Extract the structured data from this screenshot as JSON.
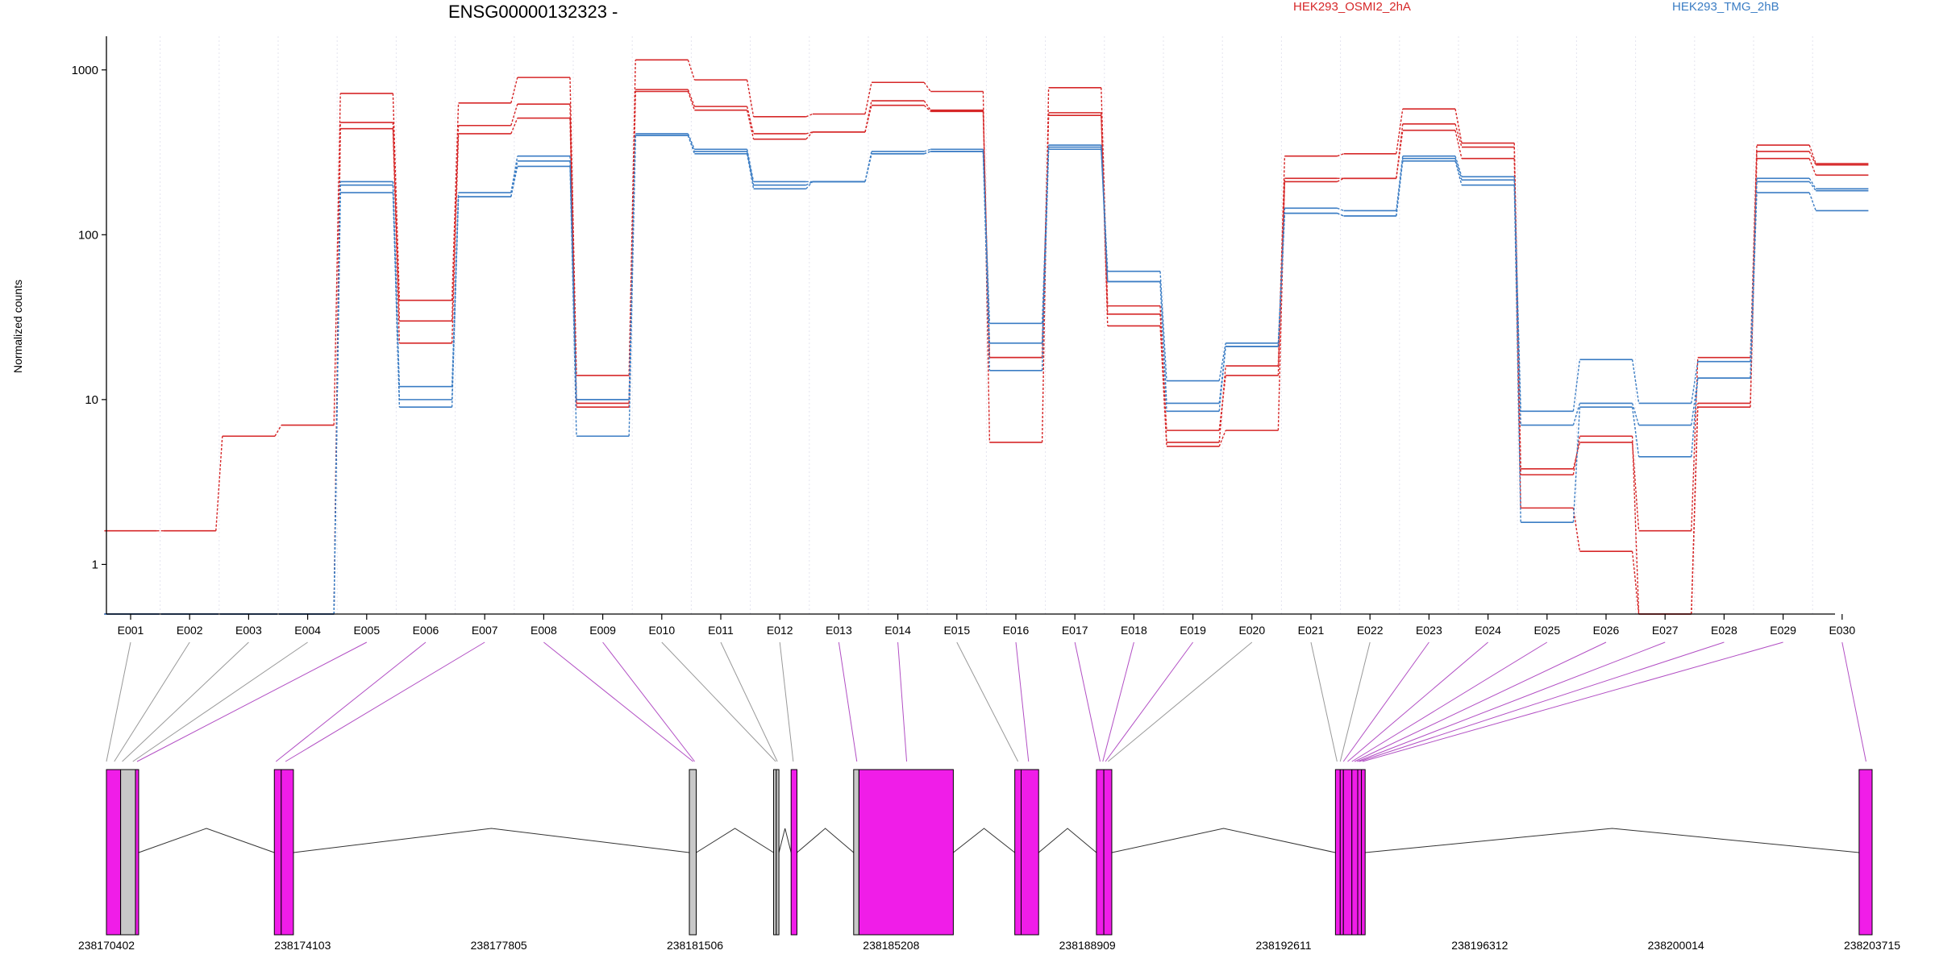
{
  "chart_data": {
    "type": "line",
    "title": "ENSG00000132323 -",
    "ylabel": "Normalized counts",
    "yscale": "log",
    "ylim": [
      0.5,
      1600
    ],
    "yticks": [
      1,
      10,
      100,
      1000
    ],
    "yticklabels": [
      "1",
      "10",
      "100",
      "1000"
    ],
    "exons": [
      "E001",
      "E002",
      "E003",
      "E004",
      "E005",
      "E006",
      "E007",
      "E008",
      "E009",
      "E010",
      "E011",
      "E012",
      "E013",
      "E014",
      "E015",
      "E016",
      "E017",
      "E018",
      "E019",
      "E020",
      "E021",
      "E022",
      "E023",
      "E024",
      "E025",
      "E026",
      "E027",
      "E028",
      "E029",
      "E030"
    ],
    "legend": [
      {
        "label": "HEK293_OSMI2_2hA",
        "color": "#d62728"
      },
      {
        "label": "HEK293_TMG_2hB",
        "color": "#3b7dc4"
      }
    ],
    "series": [
      {
        "group": "HEK293_OSMI2_2hA",
        "color": "#d62728",
        "values": [
          1.6,
          1.6,
          6,
          7,
          720,
          40,
          630,
          900,
          14,
          1150,
          870,
          520,
          540,
          840,
          740,
          5.5,
          780,
          37,
          5.5,
          16,
          300,
          310,
          580,
          360,
          3.8,
          5.5,
          1.6,
          18,
          350,
          270
        ]
      },
      {
        "group": "HEK293_OSMI2_2hA",
        "color": "#d62728",
        "values": [
          0.5,
          0.5,
          0.5,
          0.5,
          480,
          30,
          460,
          620,
          9.5,
          760,
          600,
          410,
          420,
          650,
          570,
          18,
          550,
          33,
          6.5,
          14,
          220,
          220,
          470,
          340,
          3.5,
          6,
          0.5,
          9.5,
          320,
          265
        ]
      },
      {
        "group": "HEK293_OSMI2_2hA",
        "color": "#d62728",
        "values": [
          0.5,
          0.5,
          0.5,
          0.5,
          440,
          22,
          410,
          510,
          9,
          740,
          570,
          380,
          420,
          610,
          560,
          18,
          530,
          28,
          5.2,
          6.5,
          210,
          220,
          430,
          290,
          2.2,
          1.2,
          0.5,
          9,
          290,
          230
        ]
      },
      {
        "group": "HEK293_TMG_2hB",
        "color": "#3b7dc4",
        "values": [
          0.5,
          0.5,
          0.5,
          0.5,
          210,
          12,
          180,
          300,
          10,
          410,
          330,
          210,
          210,
          320,
          330,
          29,
          350,
          60,
          13,
          22,
          145,
          140,
          300,
          225,
          8.5,
          17.5,
          9.5,
          17,
          220,
          190
        ]
      },
      {
        "group": "HEK293_TMG_2hB",
        "color": "#3b7dc4",
        "values": [
          0.5,
          0.5,
          0.5,
          0.5,
          200,
          10,
          170,
          280,
          10,
          400,
          320,
          200,
          210,
          310,
          320,
          22,
          340,
          52,
          9.5,
          21,
          135,
          130,
          290,
          215,
          7,
          9.5,
          7,
          13.5,
          210,
          185
        ]
      },
      {
        "group": "HEK293_TMG_2hB",
        "color": "#3b7dc4",
        "values": [
          0.5,
          0.5,
          0.5,
          0.5,
          180,
          9,
          170,
          260,
          6,
          400,
          310,
          190,
          210,
          310,
          320,
          15,
          330,
          52,
          8.5,
          21,
          135,
          130,
          280,
          200,
          1.8,
          9,
          4.5,
          13.5,
          180,
          140
        ]
      }
    ]
  },
  "gene_model": {
    "start_coordinate": 238170402,
    "end_coordinate": 238203715,
    "axis_labels": [
      "238170402",
      "238174103",
      "238177805",
      "238181506",
      "238185208",
      "238188909",
      "238192611",
      "238196312",
      "238200014",
      "238203715"
    ],
    "exon_color": "#f01de8",
    "noncounted_color": "#c8c8c8",
    "exon_regions": [
      {
        "start": 238170402,
        "end": 238170670,
        "type": "exon"
      },
      {
        "start": 238170670,
        "end": 238170950,
        "type": "noncounted"
      },
      {
        "start": 238170950,
        "end": 238171010,
        "type": "exon"
      },
      {
        "start": 238173570,
        "end": 238173700,
        "type": "exon"
      },
      {
        "start": 238173700,
        "end": 238173930,
        "type": "exon"
      },
      {
        "start": 238181400,
        "end": 238181530,
        "type": "noncounted"
      },
      {
        "start": 238182990,
        "end": 238183040,
        "type": "noncounted"
      },
      {
        "start": 238183040,
        "end": 238183090,
        "type": "noncounted"
      },
      {
        "start": 238183320,
        "end": 238183430,
        "type": "exon"
      },
      {
        "start": 238184500,
        "end": 238184600,
        "type": "noncounted"
      },
      {
        "start": 238184600,
        "end": 238186380,
        "type": "exon"
      },
      {
        "start": 238187540,
        "end": 238187660,
        "type": "exon"
      },
      {
        "start": 238187660,
        "end": 238187990,
        "type": "exon"
      },
      {
        "start": 238189080,
        "end": 238189220,
        "type": "exon"
      },
      {
        "start": 238189220,
        "end": 238189370,
        "type": "exon"
      },
      {
        "start": 238193590,
        "end": 238193680,
        "type": "exon"
      },
      {
        "start": 238193680,
        "end": 238193740,
        "type": "exon"
      },
      {
        "start": 238193740,
        "end": 238193900,
        "type": "exon"
      },
      {
        "start": 238193900,
        "end": 238194010,
        "type": "exon"
      },
      {
        "start": 238194010,
        "end": 238194080,
        "type": "exon"
      },
      {
        "start": 238194080,
        "end": 238194150,
        "type": "exon"
      },
      {
        "start": 238203470,
        "end": 238203715,
        "type": "exon"
      }
    ],
    "exon_anchors": [
      238170402,
      238170550,
      238170700,
      238170900,
      238170980,
      238173600,
      238173780,
      238181470,
      238181500,
      238183030,
      238183060,
      238183360,
      238184560,
      238185500,
      238187600,
      238187800,
      238189150,
      238189200,
      238189250,
      238189300,
      238193620,
      238193680,
      238193740,
      238193820,
      238193900,
      238193950,
      238194000,
      238194040,
      238194100,
      238203600
    ]
  }
}
